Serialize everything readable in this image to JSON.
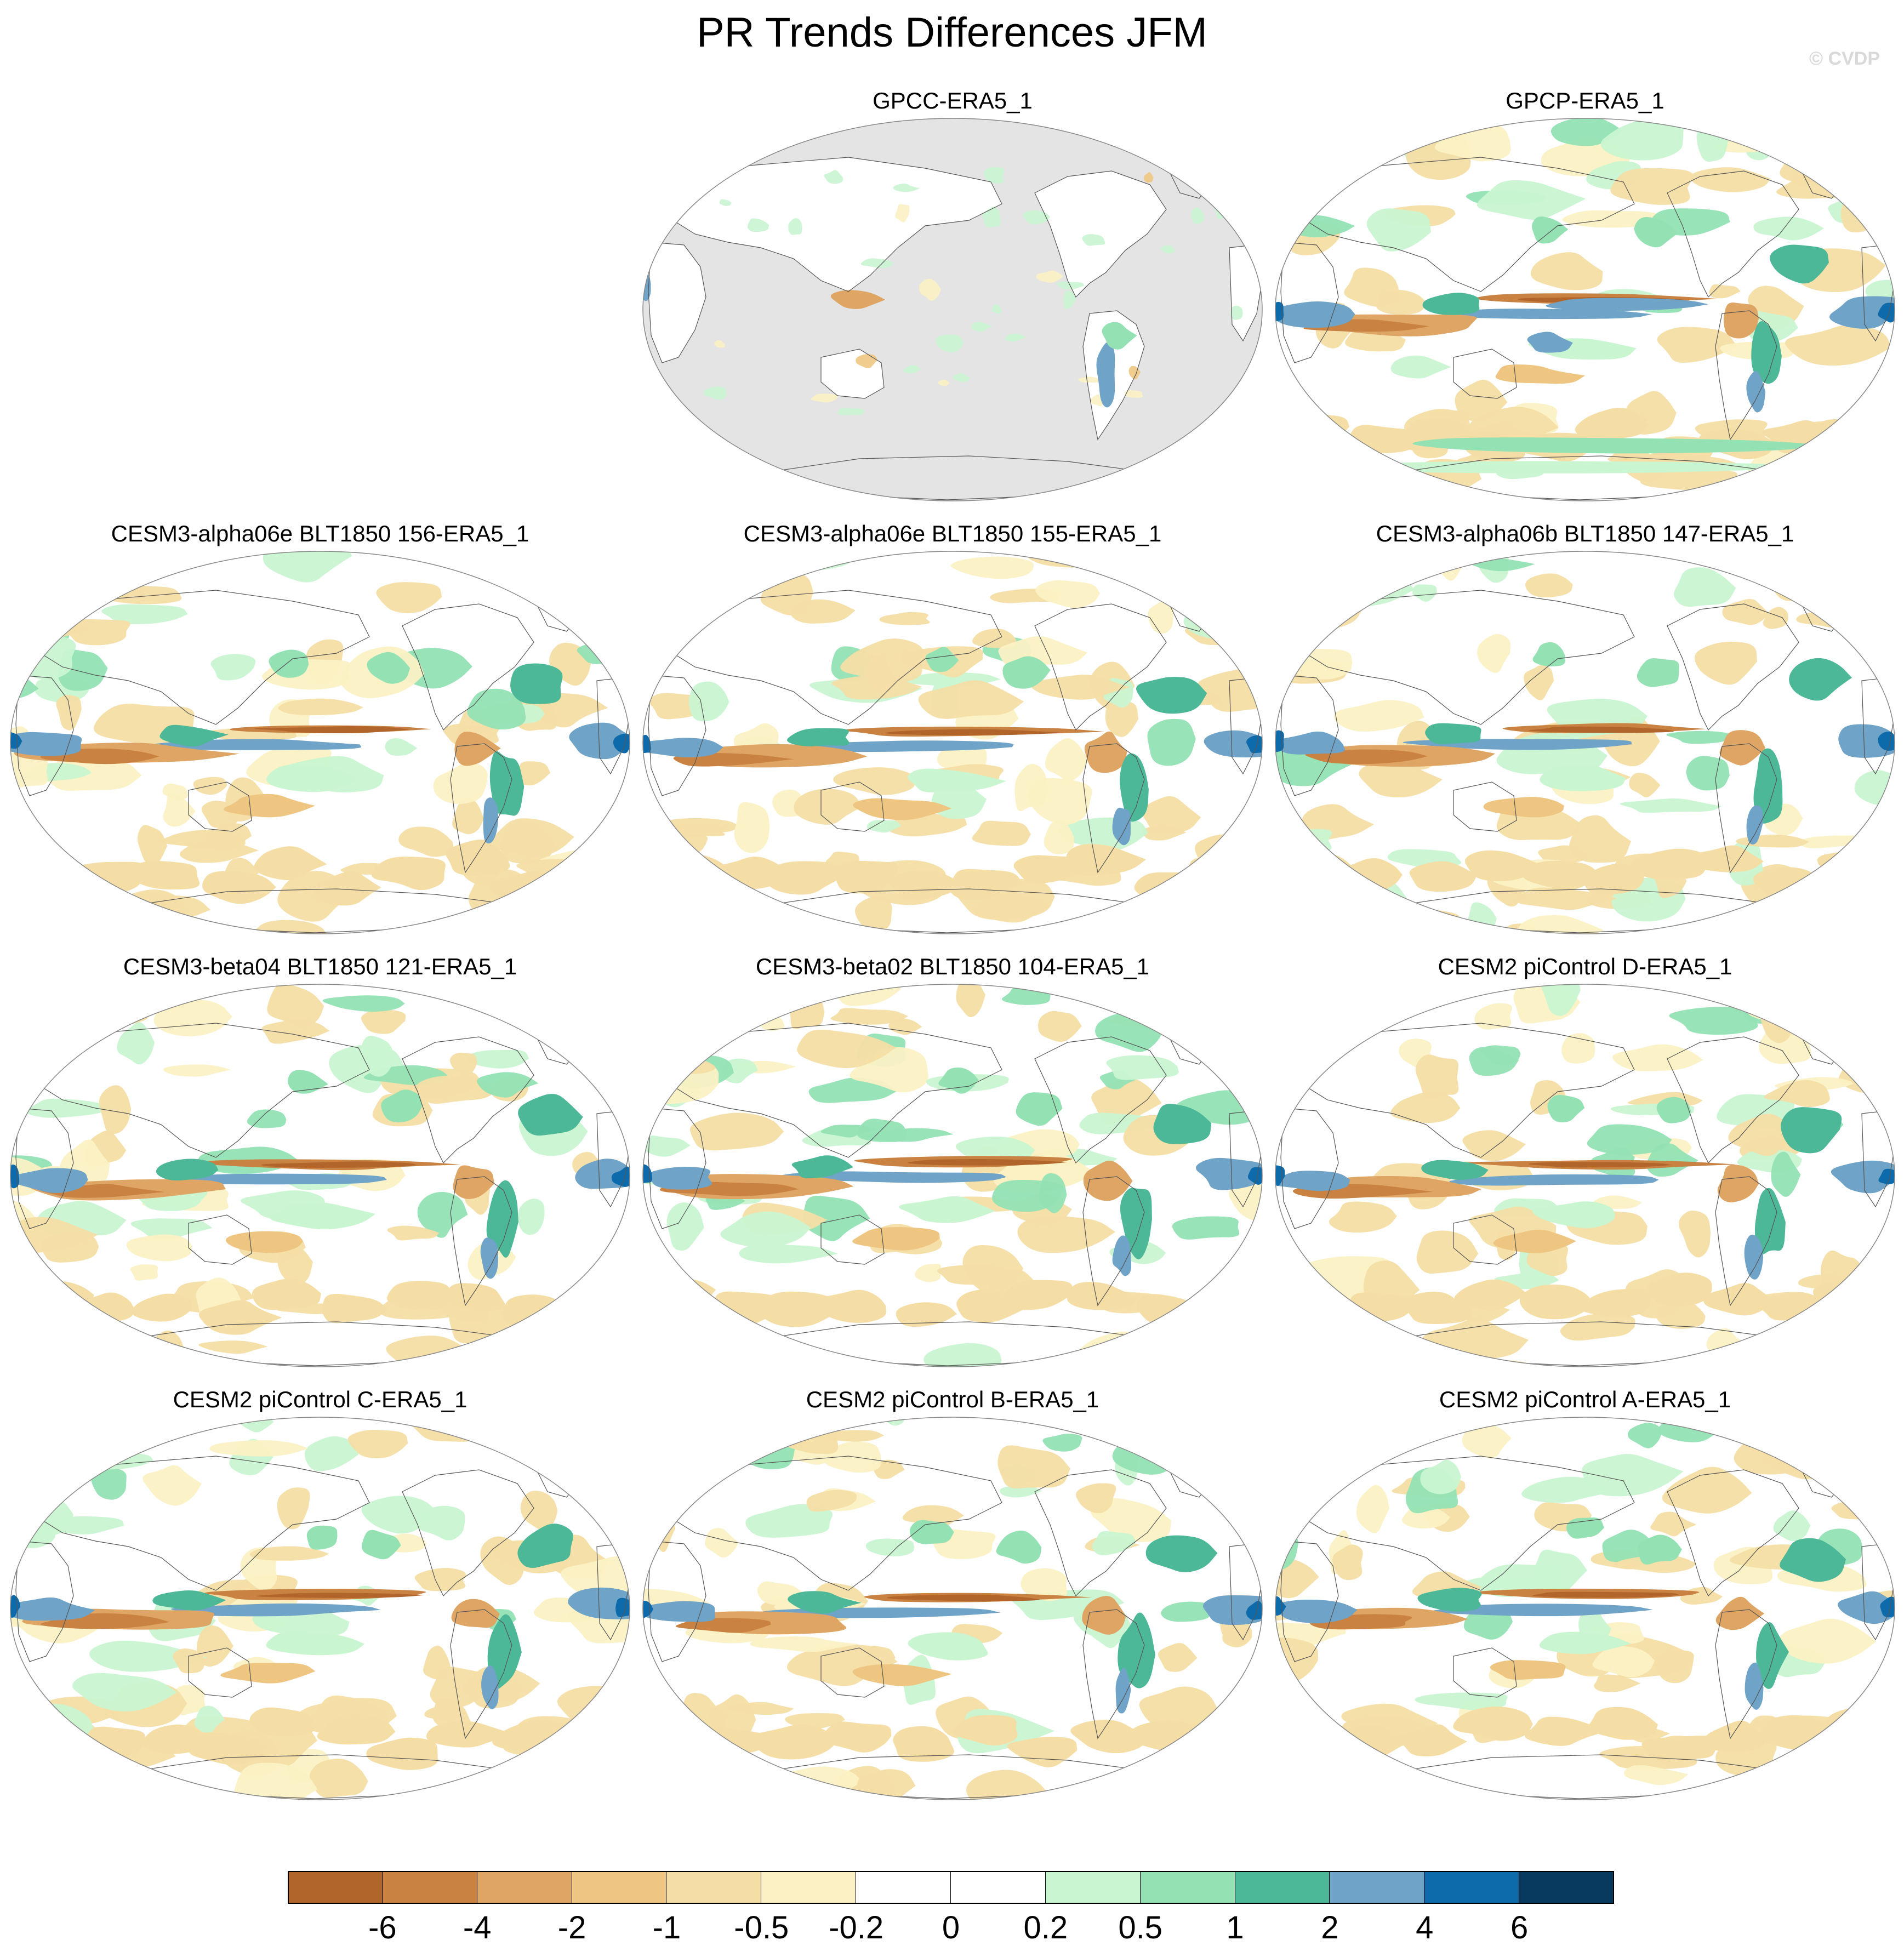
{
  "title": "PR Trends Differences JFM",
  "watermark": "© CVDP",
  "legend": {
    "colors": [
      "#b2652b",
      "#c98242",
      "#dfa564",
      "#eec682",
      "#f4dea5",
      "#fbf1c4",
      "#ffffff",
      "#ffffff",
      "#c9f5d1",
      "#94e2b4",
      "#4cb898",
      "#6fa3c7",
      "#0e6bab",
      "#073a5e"
    ],
    "labels": [
      "-6",
      "-4",
      "-2",
      "-1",
      "-0.5",
      "-0.2",
      "0",
      "0.2",
      "0.5",
      "1",
      "2",
      "4",
      "6"
    ]
  },
  "panels": [
    {
      "title": "GPCC-ERA5_1",
      "type": "land-only"
    },
    {
      "title": "GPCP-ERA5_1",
      "type": "obs"
    },
    {
      "title": "CESM3-alpha06e BLT1850 156-ERA5_1",
      "type": "model"
    },
    {
      "title": "CESM3-alpha06e BLT1850 155-ERA5_1",
      "type": "model"
    },
    {
      "title": "CESM3-alpha06b BLT1850 147-ERA5_1",
      "type": "model"
    },
    {
      "title": "CESM3-beta04 BLT1850 121-ERA5_1",
      "type": "model"
    },
    {
      "title": "CESM3-beta02 BLT1850 104-ERA5_1",
      "type": "model"
    },
    {
      "title": "CESM2 piControl D-ERA5_1",
      "type": "model"
    },
    {
      "title": "CESM2 piControl C-ERA5_1",
      "type": "model"
    },
    {
      "title": "CESM2 piControl B-ERA5_1",
      "type": "model"
    },
    {
      "title": "CESM2 piControl A-ERA5_1",
      "type": "model"
    }
  ]
}
